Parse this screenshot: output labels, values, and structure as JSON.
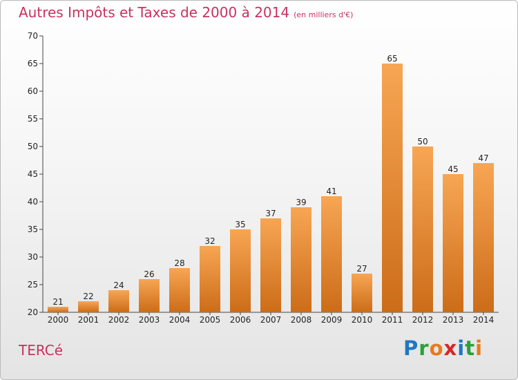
{
  "title": "Autres Impôts et Taxes de 2000 à 2014",
  "subtitle": "(en milliers d'€)",
  "commune": "TERCé",
  "logo": {
    "letters": [
      "P",
      "r",
      "o",
      "x",
      "i",
      "t",
      "i"
    ],
    "colors": [
      "#1f77c0",
      "#2aa13a",
      "#e87a1d",
      "#d62626",
      "#1f77c0",
      "#2aa13a",
      "#e87a1d"
    ]
  },
  "colors": {
    "accent": "#c8315f",
    "bar_top": "#f7a654",
    "bar_bottom": "#cc6c18"
  },
  "chart_data": {
    "type": "bar",
    "categories": [
      "2000",
      "2001",
      "2002",
      "2003",
      "2004",
      "2005",
      "2006",
      "2007",
      "2008",
      "2009",
      "2010",
      "2011",
      "2012",
      "2013",
      "2014"
    ],
    "values": [
      21,
      22,
      24,
      26,
      28,
      32,
      35,
      37,
      39,
      41,
      27,
      65,
      50,
      45,
      47
    ],
    "title": "Autres Impôts et Taxes de 2000 à 2014",
    "ylim": [
      20,
      70
    ],
    "yticks": [
      20,
      25,
      30,
      35,
      40,
      45,
      50,
      55,
      60,
      65,
      70
    ],
    "grid": false,
    "data_labels": true
  }
}
